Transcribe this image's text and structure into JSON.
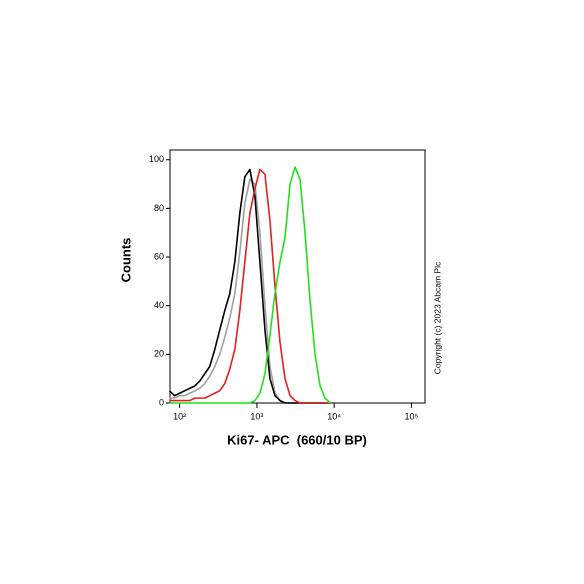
{
  "chart_data": {
    "type": "line",
    "x_label": "Ki67- APC  (660/10 BP)",
    "y_label": "Counts",
    "annotation": "Copyright (c) 2023 Abcam Plc",
    "x_scale": "log",
    "x": [
      74,
      86,
      100,
      116,
      135,
      157,
      182,
      211,
      245,
      285,
      330,
      384,
      446,
      518,
      601,
      698,
      811,
      942,
      1094,
      1271,
      1476,
      1714,
      1991,
      2312,
      2685,
      3119,
      3614,
      4198,
      4875,
      5662,
      6577,
      7638,
      8872
    ],
    "series": [
      {
        "color": "#a0a0a0",
        "values": [
          2,
          2,
          3,
          3,
          4,
          5,
          6,
          8,
          11,
          15,
          20,
          27,
          35,
          45,
          62,
          82,
          92,
          90,
          70,
          40,
          15,
          4,
          1,
          0,
          0,
          0,
          0,
          0,
          0,
          0,
          0,
          0,
          0
        ]
      },
      {
        "color": "#000000",
        "values": [
          5,
          3,
          4,
          5,
          6,
          7,
          9,
          12,
          15,
          22,
          30,
          38,
          45,
          58,
          78,
          93,
          96,
          85,
          58,
          30,
          10,
          3,
          1,
          0,
          0,
          0,
          0,
          0,
          0,
          0,
          0,
          0,
          0
        ]
      },
      {
        "color": "#e0201c",
        "values": [
          1,
          1,
          1,
          1,
          1,
          2,
          2,
          2,
          3,
          4,
          5,
          8,
          14,
          22,
          38,
          58,
          78,
          88,
          96,
          94,
          75,
          48,
          25,
          10,
          3,
          1,
          0,
          0,
          0,
          0,
          0,
          0,
          0
        ]
      },
      {
        "color": "#22e01c",
        "values": [
          0,
          0,
          0,
          0,
          0,
          0,
          0,
          0,
          0,
          0,
          0,
          0,
          0,
          0,
          0,
          0,
          0,
          1,
          4,
          12,
          28,
          45,
          58,
          68,
          90,
          97,
          92,
          70,
          42,
          20,
          7,
          2,
          0
        ]
      }
    ],
    "xlim": [
      75,
      150000
    ],
    "xticks": [
      {
        "value": 100,
        "label": "10²"
      },
      {
        "value": 1000,
        "label": "10³"
      },
      {
        "value": 10000,
        "label": "10⁴"
      },
      {
        "value": 100000,
        "label": "10⁵"
      }
    ],
    "ylim": [
      0,
      104
    ],
    "yticks": [
      0,
      20,
      40,
      60,
      80,
      100
    ]
  }
}
